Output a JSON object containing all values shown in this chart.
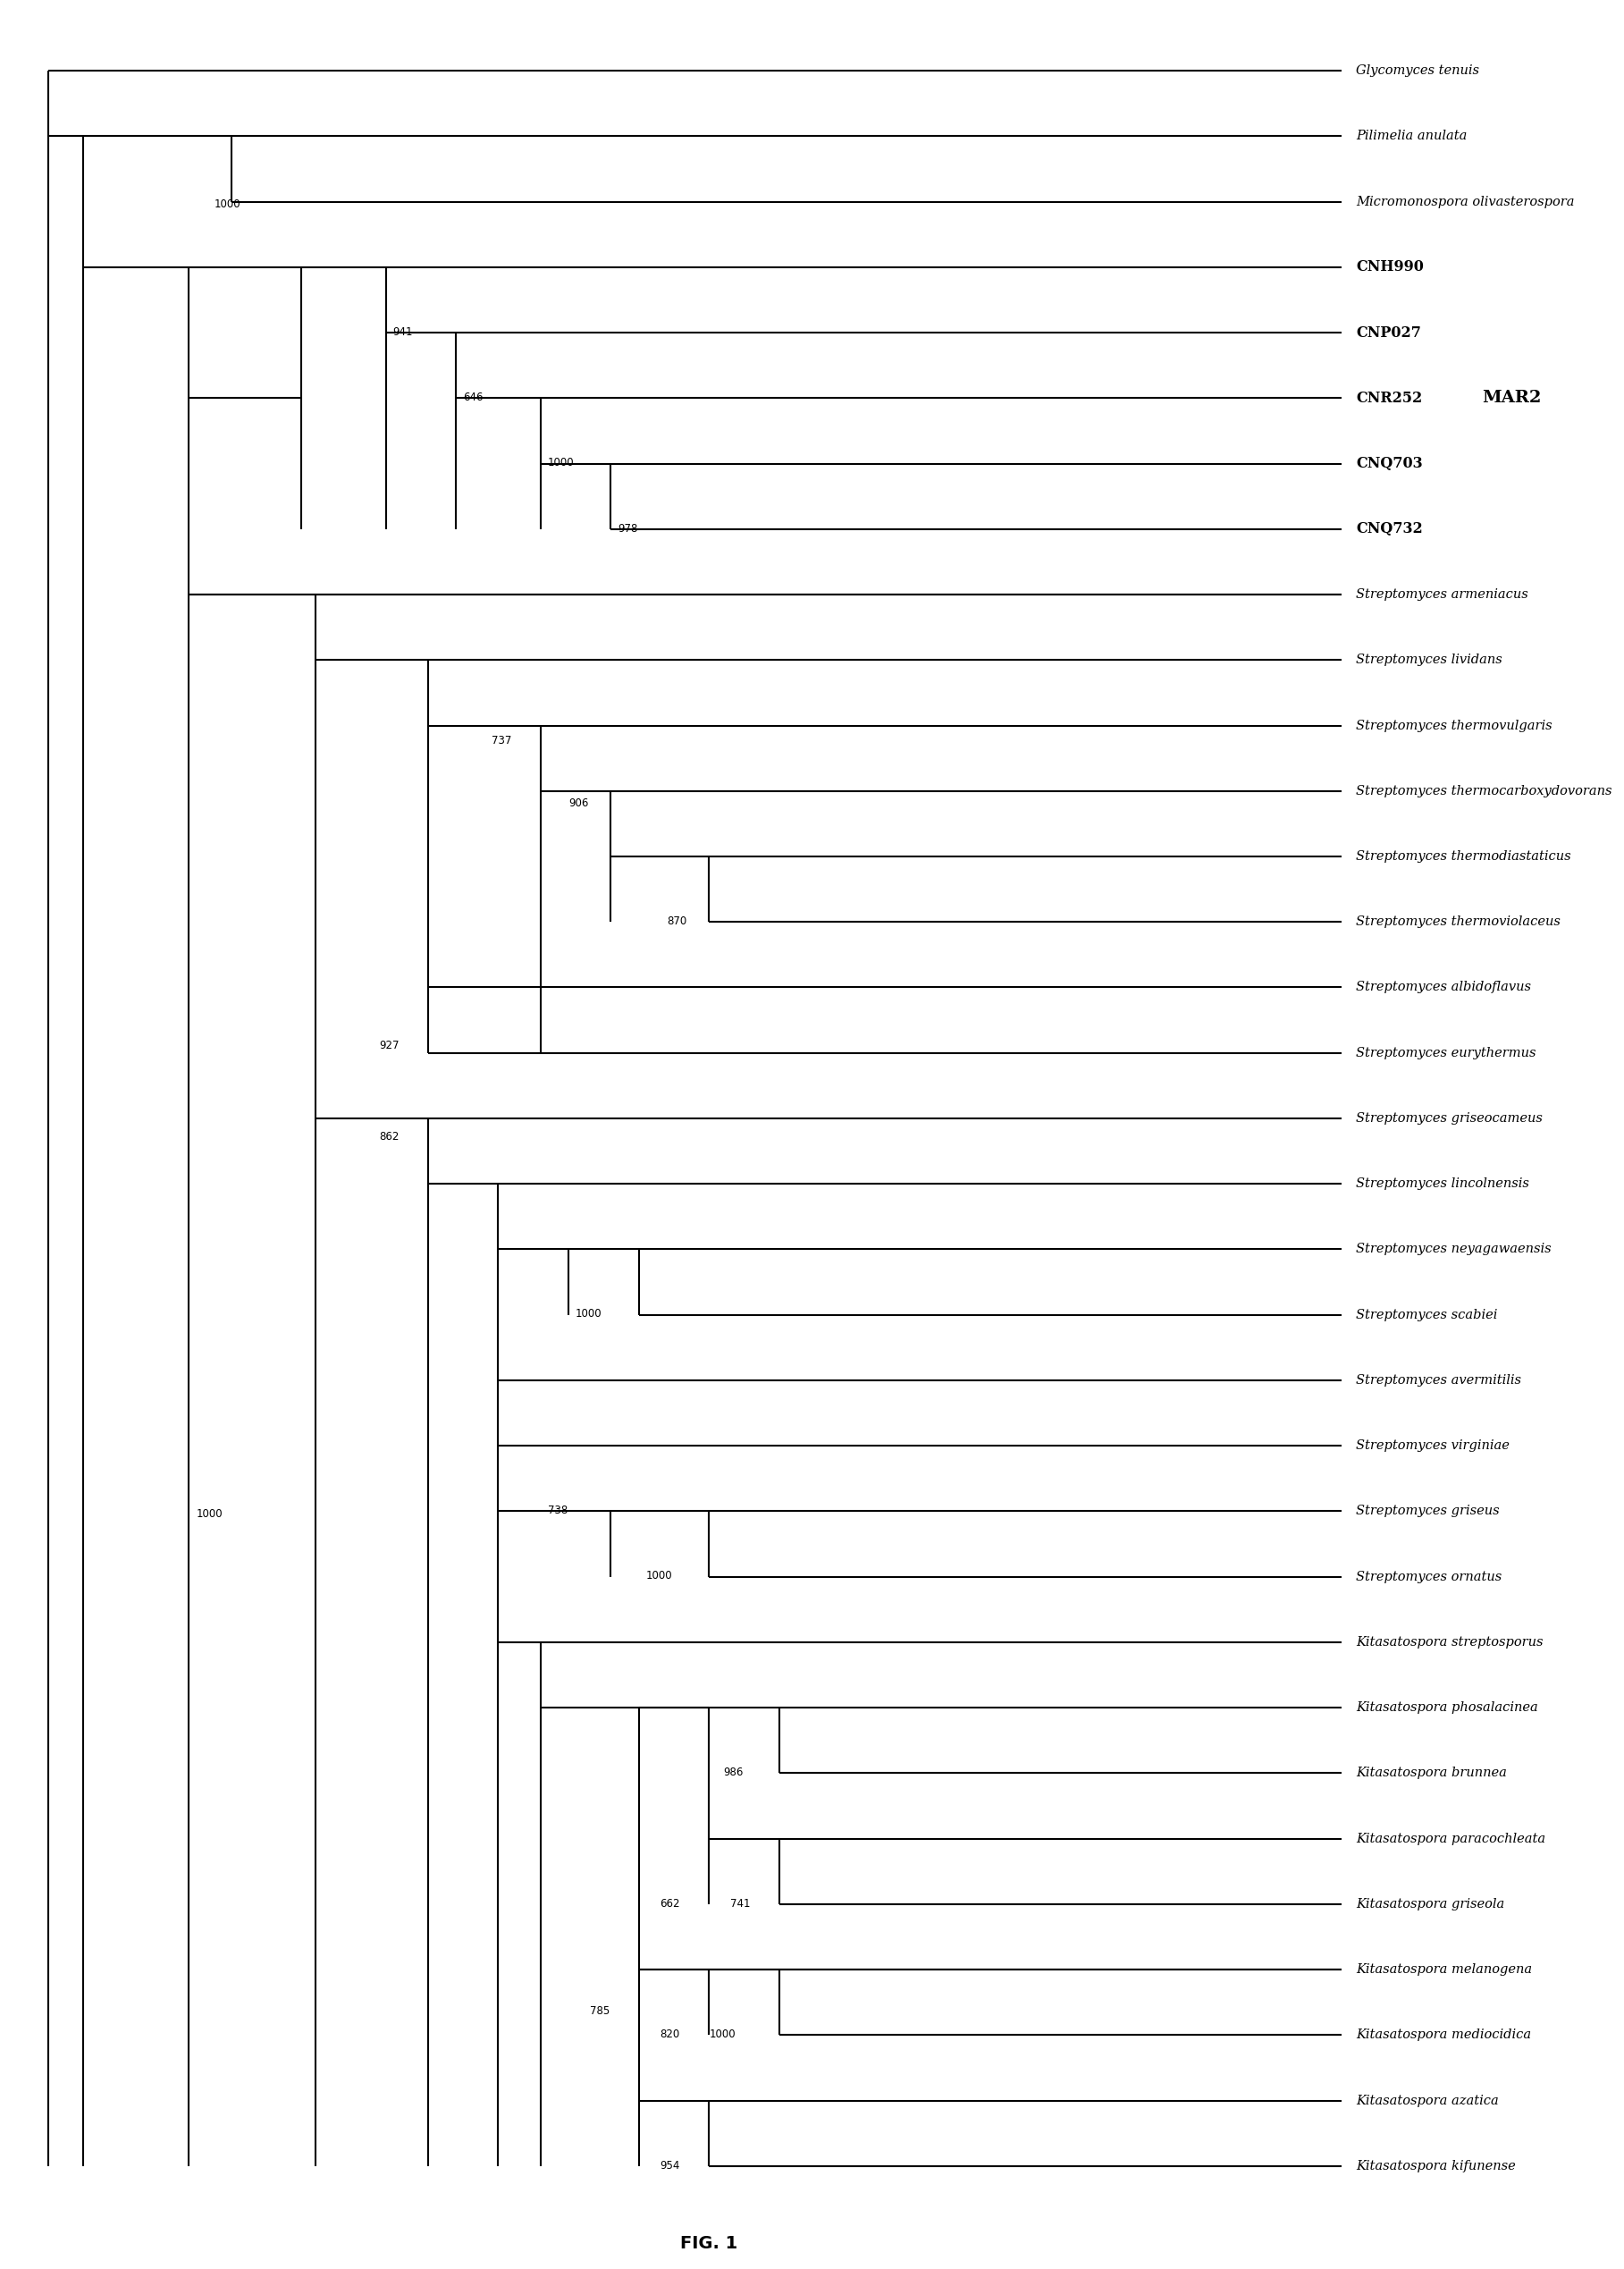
{
  "title": "FIG. 1",
  "background": "#ffffff",
  "fig_width": 18.17,
  "fig_height": 25.38,
  "tree": {
    "leaves": [
      "Glycomyces tenuis",
      "Pilimelia anulata",
      "Micromonospora olivasterospora",
      "CNH990",
      "CNP027",
      "CNR252",
      "CNQ703",
      "CNQ732",
      "Streptomyces armeniacus",
      "Streptomyces lividans",
      "Streptomyces thermovulgaris",
      "Streptomyces thermocarboxydovorans",
      "Streptomyces thermodiastaticus",
      "Streptomyces thermoviolaceus",
      "Streptomyces albidoflavus",
      "Streptomyces eurythermus",
      "Streptomyces griseocameus",
      "Streptomyces lincolnensis",
      "Streptomyces neyagawaensis",
      "Streptomyces scabiei",
      "Streptomyces avermitilis",
      "Streptomyces virginiae",
      "Streptomyces griseus",
      "Streptomyces ornatus",
      "Kitasatospora streptosporus",
      "Kitasatospora phosalacinea",
      "Kitasatospora brunnea",
      "Kitasatospora paracochleata",
      "Kitasatospora griseola",
      "Kitasatospora melanogena",
      "Kitasatospora mediocidica",
      "Kitasatospora azatica",
      "Kitasatospora kifunense"
    ],
    "bold_leaves": [
      "CNH990",
      "CNP027",
      "CNR252",
      "CNQ703",
      "CNQ732"
    ],
    "mar2_bracket": [
      "CNH990",
      "CNQ732"
    ],
    "mar2_label": "MAR2"
  }
}
